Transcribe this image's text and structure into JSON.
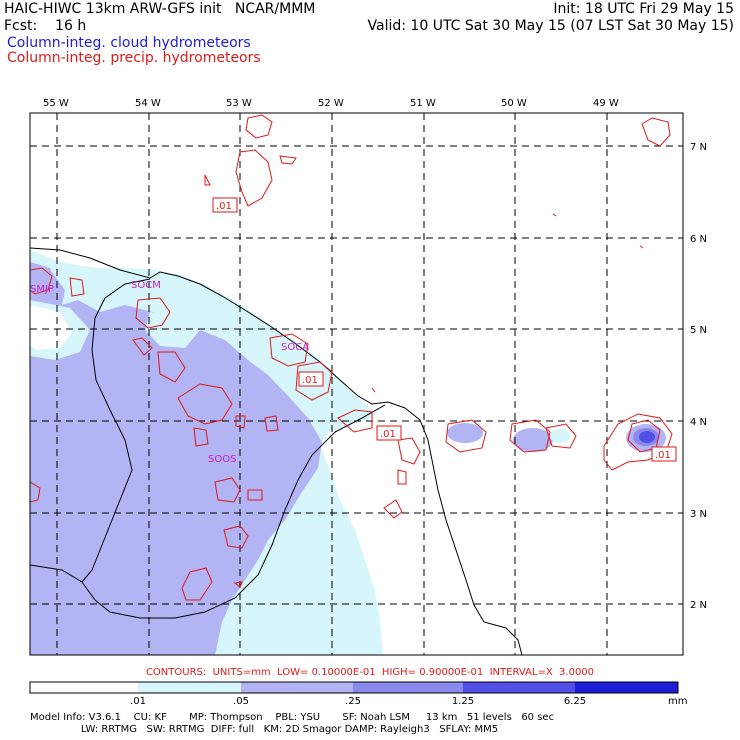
{
  "header": {
    "title_left": "HAIC-HIWC 13km ARW-GFS init   NCAR/MMM",
    "init": "Init: 18 UTC Fri 29 May 15",
    "fcst": "Fcst:    16 h",
    "valid": "Valid: 10 UTC Sat 30 May 15 (07 LST Sat 30 May 15)",
    "legend_cloud": "Column-integ. cloud hydrometeors",
    "legend_precip": "Column-integ. precip. hydrometeors"
  },
  "map": {
    "longitude_labels": [
      "55 W",
      "54 W",
      "53 W",
      "52 W",
      "51 W",
      "50 W",
      "49 W"
    ],
    "latitude_labels": [
      "7 N",
      "6 N",
      "5 N",
      "4 N",
      "3 N",
      "2 N"
    ],
    "stations": [
      "SMJP",
      "SOCM",
      "SOCA",
      "SOOS"
    ],
    "contour_label": ".01"
  },
  "footer": {
    "contours_info": "CONTOURS:  UNITS=mm  LOW= 0.10000E-01  HIGH= 0.90000E-01  INTERVAL=X  3.0000",
    "scale_values": [
      ".01",
      ".05",
      ".25",
      "1.25",
      "6.25"
    ],
    "scale_unit": "mm",
    "scale_colors": [
      "#ffffff",
      "#d6f6fb",
      "#b2b4f4",
      "#8a8aee",
      "#5050e6",
      "#1d1dd8"
    ],
    "model_line1": "Model Info: V3.6.1    CU: KF       MP: Thompson    PBL: YSU       SF: Noah LSM     13 km   51 levels   60 sec",
    "model_line2": "                LW: RRTMG   SW: RRTMG  DIFF: full   KM: 2D Smagor DAMP: Rayleigh3   SFLAY: MM5"
  },
  "colors": {
    "cloud_light": "#d6f6fb",
    "cloud_mid": "#b2b4f4",
    "cloud_dark": "#8a8aee",
    "cloud_darkest": "#5050e6",
    "precip_contour": "#dd1a1a",
    "station": "#c81cc8"
  }
}
